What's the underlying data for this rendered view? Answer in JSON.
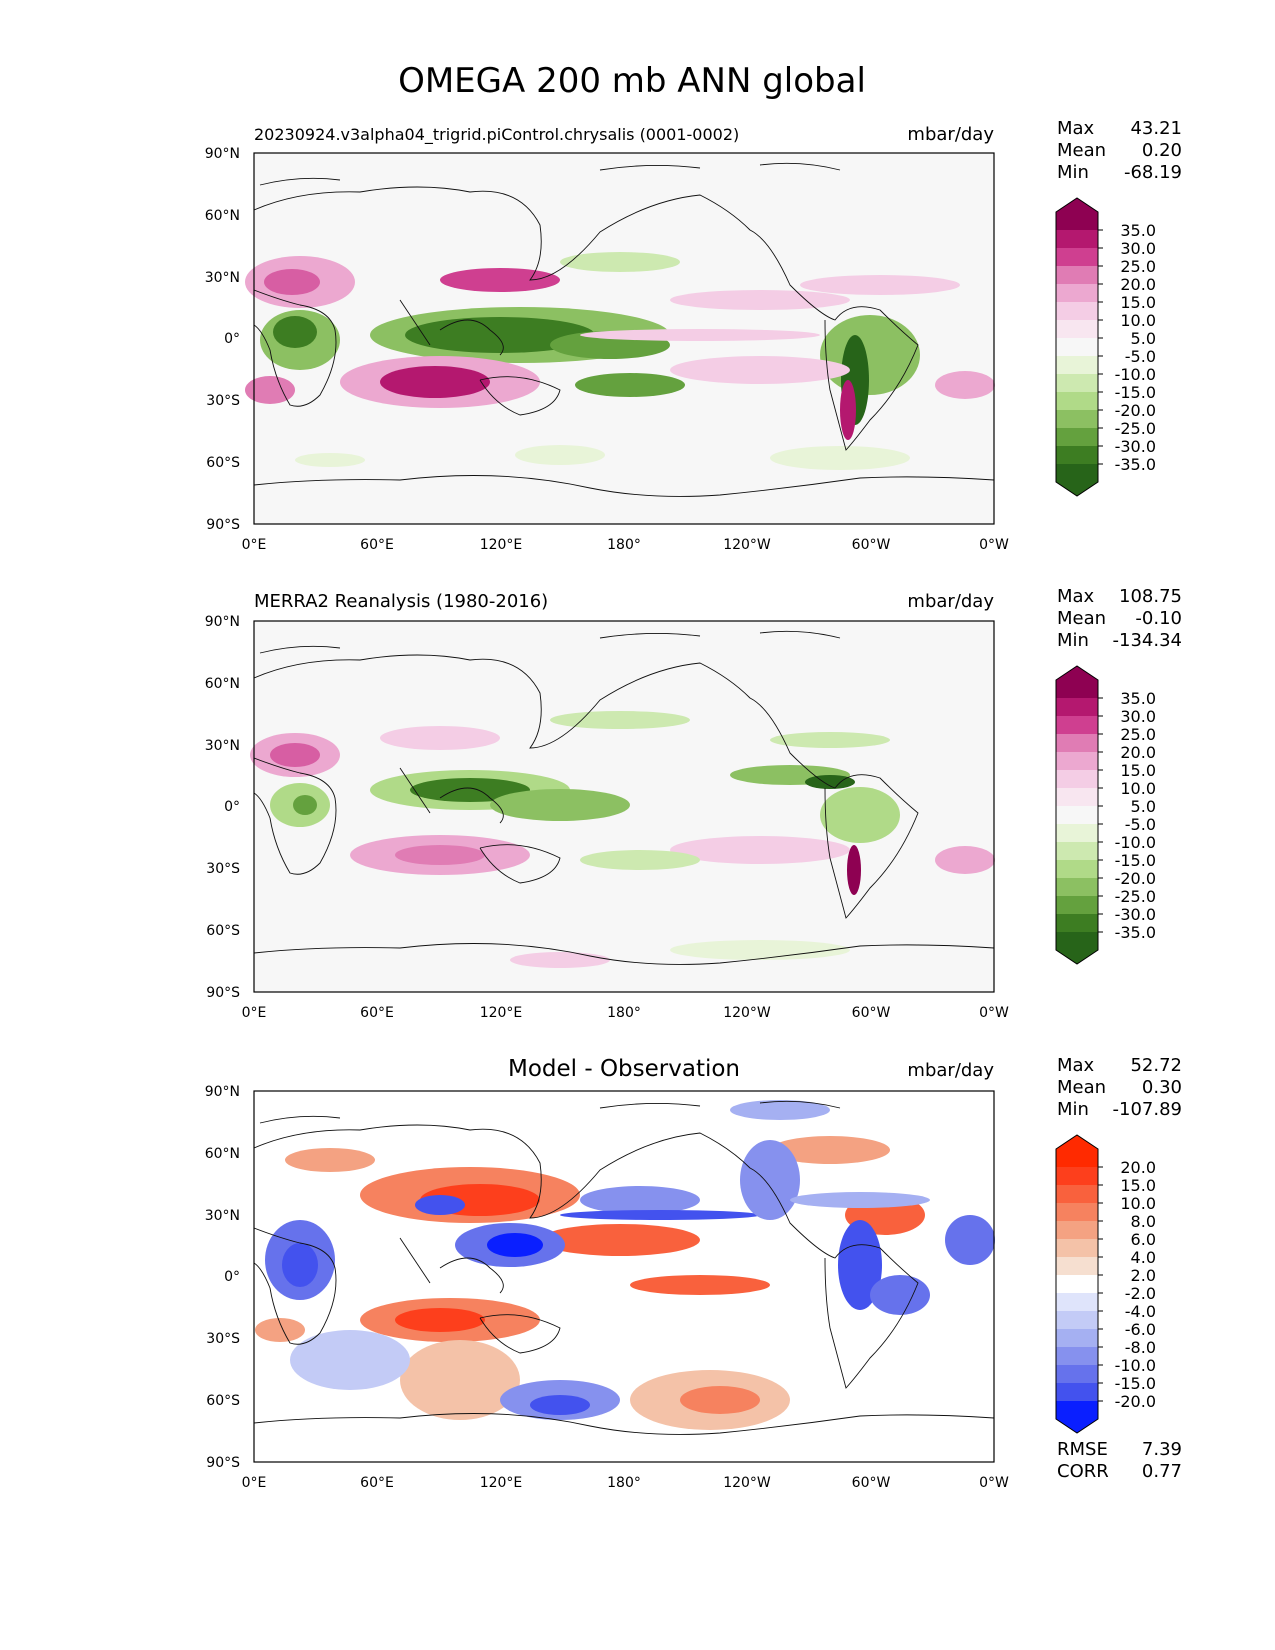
{
  "figure": {
    "title": "OMEGA 200 mb ANN global"
  },
  "axes": {
    "lat_ticks": [
      "90°N",
      "60°N",
      "30°N",
      "0°",
      "30°S",
      "60°S",
      "90°S"
    ],
    "lon_ticks": [
      "0°E",
      "60°E",
      "120°E",
      "180°",
      "120°W",
      "60°W",
      "0°W"
    ]
  },
  "panels": [
    {
      "id": "model",
      "title": "20230924.v3alpha04_trigrid.piControl.chrysalis (0001-0002)",
      "units": "mbar/day",
      "colormap": "PiYG_r",
      "stats": {
        "Max": "43.21",
        "Mean": "0.20",
        "Min": "-68.19"
      },
      "colorbar": {
        "labels": [
          "35.0",
          "30.0",
          "25.0",
          "20.0",
          "15.0",
          "10.0",
          "5.0",
          "-5.0",
          "-10.0",
          "-15.0",
          "-20.0",
          "-25.0",
          "-30.0",
          "-35.0"
        ],
        "colors": [
          "#8e0152",
          "#b4186f",
          "#cf3f90",
          "#e07cb4",
          "#eca8d0",
          "#f4cde5",
          "#f8e6f0",
          "#f7f7f7",
          "#e8f4d8",
          "#cde9b0",
          "#b0da88",
          "#8cc062",
          "#64a13e",
          "#3d7d22",
          "#276419"
        ]
      }
    },
    {
      "id": "obs",
      "title": "MERRA2 Reanalysis (1980-2016)",
      "units": "mbar/day",
      "colormap": "PiYG_r",
      "stats": {
        "Max": "108.75",
        "Mean": "-0.10",
        "Min": "-134.34"
      },
      "colorbar": {
        "labels": [
          "35.0",
          "30.0",
          "25.0",
          "20.0",
          "15.0",
          "10.0",
          "5.0",
          "-5.0",
          "-10.0",
          "-15.0",
          "-20.0",
          "-25.0",
          "-30.0",
          "-35.0"
        ],
        "colors": [
          "#8e0152",
          "#b4186f",
          "#cf3f90",
          "#e07cb4",
          "#eca8d0",
          "#f4cde5",
          "#f8e6f0",
          "#f7f7f7",
          "#e8f4d8",
          "#cde9b0",
          "#b0da88",
          "#8cc062",
          "#64a13e",
          "#3d7d22",
          "#276419"
        ]
      }
    },
    {
      "id": "diff",
      "title": "Model - Observation",
      "units": "mbar/day",
      "colormap": "bwr",
      "stats": {
        "Max": "52.72",
        "Mean": "0.30",
        "Min": "-107.89"
      },
      "metrics": {
        "RMSE": "7.39",
        "CORR": "0.77"
      },
      "colorbar": {
        "labels": [
          "20.0",
          "15.0",
          "10.0",
          "8.0",
          "6.0",
          "4.0",
          "2.0",
          "-2.0",
          "-4.0",
          "-6.0",
          "-8.0",
          "-10.0",
          "-15.0",
          "-20.0"
        ],
        "colors": [
          "#ff2a00",
          "#fd3f1c",
          "#f9613d",
          "#f6825f",
          "#f4a282",
          "#f4c2a8",
          "#f6dfd0",
          "#ffffff",
          "#dfe4fb",
          "#c3cbf6",
          "#a5b0f2",
          "#8691ee",
          "#6672ec",
          "#4352ee",
          "#0a1fff"
        ]
      }
    }
  ]
}
